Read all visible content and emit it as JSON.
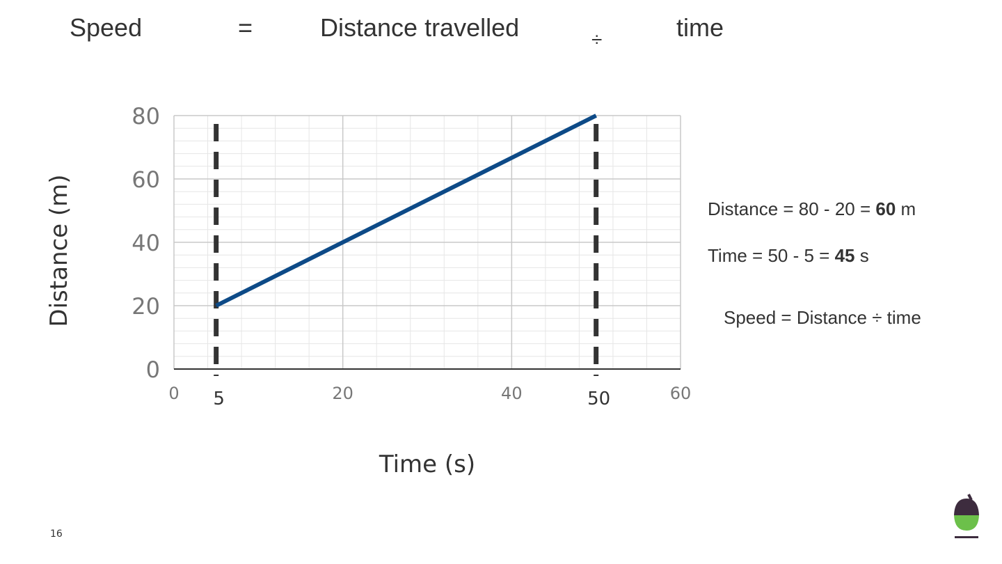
{
  "header": {
    "speed": "Speed",
    "equals": "=",
    "quantity": "Distance travelled",
    "divide": "÷",
    "time": "time"
  },
  "notes": [
    [
      "Distance = 80 - 20 = ",
      "60",
      " m"
    ],
    [
      "Time = 50 - 5 = ",
      "45",
      " s"
    ],
    "Speed = Distance ÷ time"
  ],
  "page_number": "16",
  "chart_data": {
    "type": "line",
    "x": [
      5,
      50
    ],
    "values": [
      20,
      80
    ],
    "color": "#0d4a87",
    "xlim": [
      0,
      60
    ],
    "ylim": [
      0,
      80
    ],
    "xticks": [
      0,
      20,
      40,
      60
    ],
    "yticks": [
      0,
      20,
      40,
      60,
      80
    ],
    "xlabel": "Time (s)",
    "ylabel": "Distance (m)",
    "grid": true,
    "markers": [
      5,
      50
    ]
  }
}
